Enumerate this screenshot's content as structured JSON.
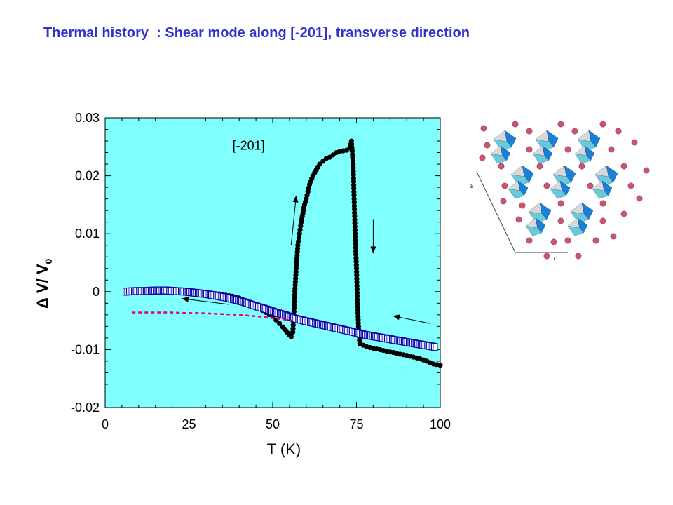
{
  "slide": {
    "title": "Thermal history  : Shear mode along [-201], transverse direction"
  },
  "chart_data": {
    "type": "scatter",
    "title": "",
    "xlabel": "T (K)",
    "ylabel_main": "Δ V/ V",
    "ylabel_sub": "0",
    "xlim": [
      0,
      100
    ],
    "ylim": [
      -0.02,
      0.03
    ],
    "x_ticks": [
      0,
      25,
      50,
      75,
      100
    ],
    "x_tick_labels": [
      "0",
      "25",
      "50",
      "75",
      "100"
    ],
    "y_ticks": [
      -0.02,
      -0.01,
      0,
      0.01,
      0.02,
      0.03
    ],
    "y_tick_labels": [
      "-0.02",
      "-0.01",
      "0",
      "0.01",
      "0.02",
      "0.03"
    ],
    "background_color": "#80ffff",
    "grid": false,
    "annotations": [
      {
        "text": "[-201]",
        "x": 38,
        "y": 0.0245
      }
    ],
    "direction_arrows": [
      {
        "from": [
          37,
          -0.0022
        ],
        "to": [
          23,
          -0.0012
        ]
      },
      {
        "from": [
          55.5,
          0.008
        ],
        "to": [
          57,
          0.0165
        ]
      },
      {
        "from": [
          80,
          0.0125
        ],
        "to": [
          80,
          0.0067
        ]
      },
      {
        "from": [
          97,
          -0.0055
        ],
        "to": [
          86,
          -0.0042
        ]
      }
    ],
    "series": [
      {
        "marker": "filled-circle",
        "color": "#000000",
        "x": [
          6,
          8,
          10,
          12,
          14,
          16,
          18,
          20,
          22,
          24,
          26,
          28,
          30,
          32,
          34,
          36,
          38,
          40,
          42,
          44,
          46,
          48,
          50,
          51,
          52,
          53,
          54,
          55,
          55.5,
          56,
          56.3,
          56.6,
          57,
          57.5,
          58,
          58.5,
          59,
          59.5,
          60,
          61,
          62,
          63,
          64,
          65,
          66,
          67,
          68,
          69,
          70,
          71,
          72,
          73,
          73.5,
          74,
          74.3,
          74.6,
          75,
          75.3,
          75.6,
          76,
          78,
          80,
          82,
          84,
          86,
          88,
          90,
          92,
          94,
          96,
          98,
          100
        ],
        "y": [
          0.0,
          0.0001,
          0.0002,
          0.0002,
          0.0003,
          0.0003,
          0.0004,
          0.0004,
          0.0003,
          0.0001,
          -0.0001,
          -0.0002,
          -0.0002,
          -0.0003,
          -0.0004,
          -0.0006,
          -0.0008,
          -0.0011,
          -0.0016,
          -0.0022,
          -0.0029,
          -0.0036,
          -0.0043,
          -0.0049,
          -0.0055,
          -0.0061,
          -0.0068,
          -0.0075,
          -0.0078,
          -0.007,
          -0.004,
          0.0,
          0.004,
          0.008,
          0.01,
          0.012,
          0.0135,
          0.015,
          0.016,
          0.0185,
          0.02,
          0.021,
          0.022,
          0.0225,
          0.023,
          0.0232,
          0.0236,
          0.024,
          0.0242,
          0.0243,
          0.0244,
          0.0248,
          0.026,
          0.022,
          0.016,
          0.01,
          0.004,
          -0.002,
          -0.006,
          -0.009,
          -0.0095,
          -0.0098,
          -0.01,
          -0.0103,
          -0.0105,
          -0.0108,
          -0.011,
          -0.0113,
          -0.0116,
          -0.012,
          -0.0125,
          -0.0127
        ]
      },
      {
        "marker": "open-square",
        "color": "#0000aa",
        "x": [
          6,
          9,
          12,
          15,
          18,
          21,
          24,
          27,
          30,
          33,
          36,
          39,
          42,
          45,
          48,
          51,
          54,
          57,
          60,
          63,
          66,
          69,
          72,
          75,
          78,
          81,
          84,
          87,
          90,
          93,
          96,
          99
        ],
        "y": [
          0.0,
          0.0001,
          0.0001,
          0.0002,
          0.0002,
          0.0001,
          0.0,
          -0.0002,
          -0.0004,
          -0.0007,
          -0.001,
          -0.0014,
          -0.0019,
          -0.0025,
          -0.003,
          -0.0036,
          -0.0041,
          -0.0047,
          -0.0051,
          -0.0055,
          -0.0059,
          -0.0063,
          -0.0067,
          -0.0071,
          -0.0075,
          -0.0078,
          -0.0081,
          -0.0084,
          -0.0087,
          -0.009,
          -0.0093,
          -0.0096
        ]
      },
      {
        "marker": "dashed-line",
        "color": "#e0007a",
        "x": [
          8,
          12,
          16,
          20,
          24,
          28,
          32,
          36,
          40,
          44,
          48,
          52,
          56
        ],
        "y": [
          -0.0036,
          -0.0036,
          -0.0036,
          -0.0036,
          -0.0037,
          -0.0037,
          -0.0038,
          -0.0039,
          -0.004,
          -0.0042,
          -0.0044,
          -0.0047,
          -0.005
        ]
      }
    ]
  },
  "crystal_image": {
    "axis_labels": {
      "a": "a",
      "c": "c"
    },
    "colors": {
      "octahedron_dark": "#1a7fd6",
      "octahedron_light": "#6cc9dc",
      "octahedron_grey": "#d8d8d8",
      "atom": "#c9556f"
    }
  }
}
